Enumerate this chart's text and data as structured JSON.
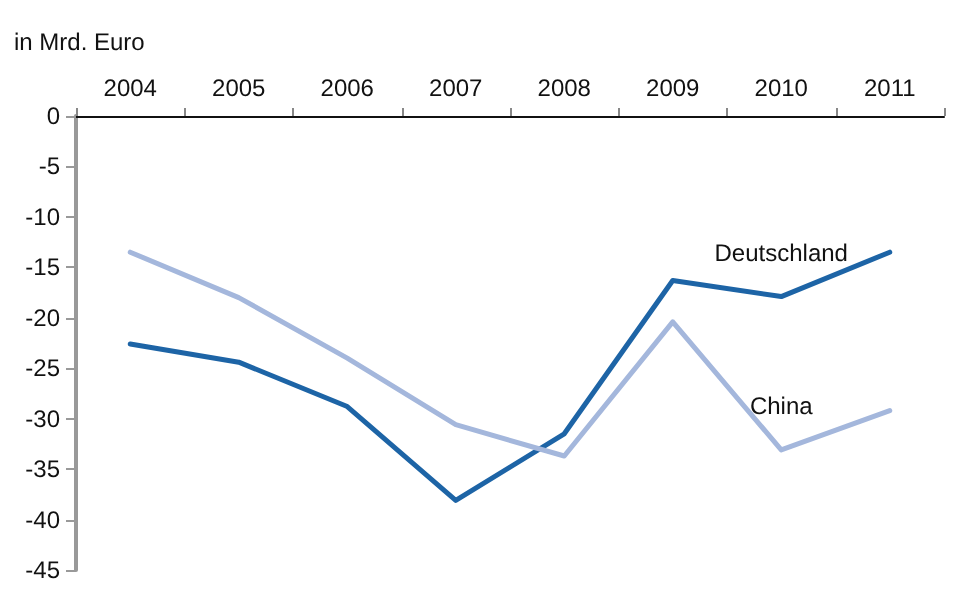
{
  "chart_data": {
    "type": "line",
    "ylabel": "in Mrd. Euro",
    "categories": [
      "2004",
      "2005",
      "2006",
      "2007",
      "2008",
      "2009",
      "2010",
      "2011"
    ],
    "series": [
      {
        "name": "Deutschland",
        "color": "#1d64a6",
        "values": [
          -22.6,
          -24.4,
          -28.8,
          -38.1,
          -31.5,
          -16.3,
          -17.9,
          -13.5
        ]
      },
      {
        "name": "China",
        "color": "#a4b7dc",
        "values": [
          -13.5,
          -18,
          -24,
          -30.6,
          -33.7,
          -20.4,
          -33.1,
          -29.2
        ]
      }
    ],
    "ylim": [
      -45,
      0
    ],
    "yticks": [
      0,
      -5,
      -10,
      -15,
      -20,
      -25,
      -30,
      -35,
      -40,
      -45
    ],
    "grid": false,
    "legend": false,
    "marker": "none",
    "line_style": "solid"
  }
}
